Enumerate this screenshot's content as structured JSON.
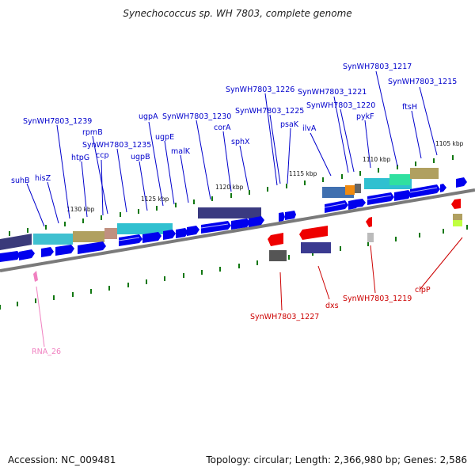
{
  "title": "Synechococcus sp. WH 7803, complete genome",
  "footer": {
    "accession": "Accession: NC_009481",
    "stats": "Topology: circular; Length: 2,366,980 bp; Genes: 2,586"
  },
  "colors": {
    "forward_gene": "#0000ee",
    "reverse_gene": "#ee0000",
    "rna_gene": "#f080c0",
    "backbone": "#888888",
    "tick": "#117711",
    "label_forward": "#0000cc",
    "label_reverse": "#cc0000"
  },
  "kbp_labels": [
    "1105 kbp",
    "1110 kbp",
    "1115 kbp",
    "1120 kbp",
    "1125 kbp",
    "1130 kbp"
  ],
  "forward_labels": [
    "SynWH7803_1217",
    "SynWH7803_1215",
    "SynWH7803_1226",
    "SynWH7803_1221",
    "SynWH7803_1220",
    "SynWH7803_1225",
    "ftsH",
    "psaK",
    "pykF",
    "SynWH7803_1239",
    "SynWH7803_1230",
    "ugpA",
    "corA",
    "ilvA",
    "rpmB",
    "SynWH7803_1235",
    "ugpE",
    "sphX",
    "ccp",
    "htpG",
    "malK",
    "ugpB",
    "suhB",
    "hisZ"
  ],
  "reverse_labels": [
    "SynWH7803_1227",
    "dxs",
    "SynWH7803_1219",
    "clpP"
  ],
  "rna_labels": [
    "RNA_26"
  ]
}
